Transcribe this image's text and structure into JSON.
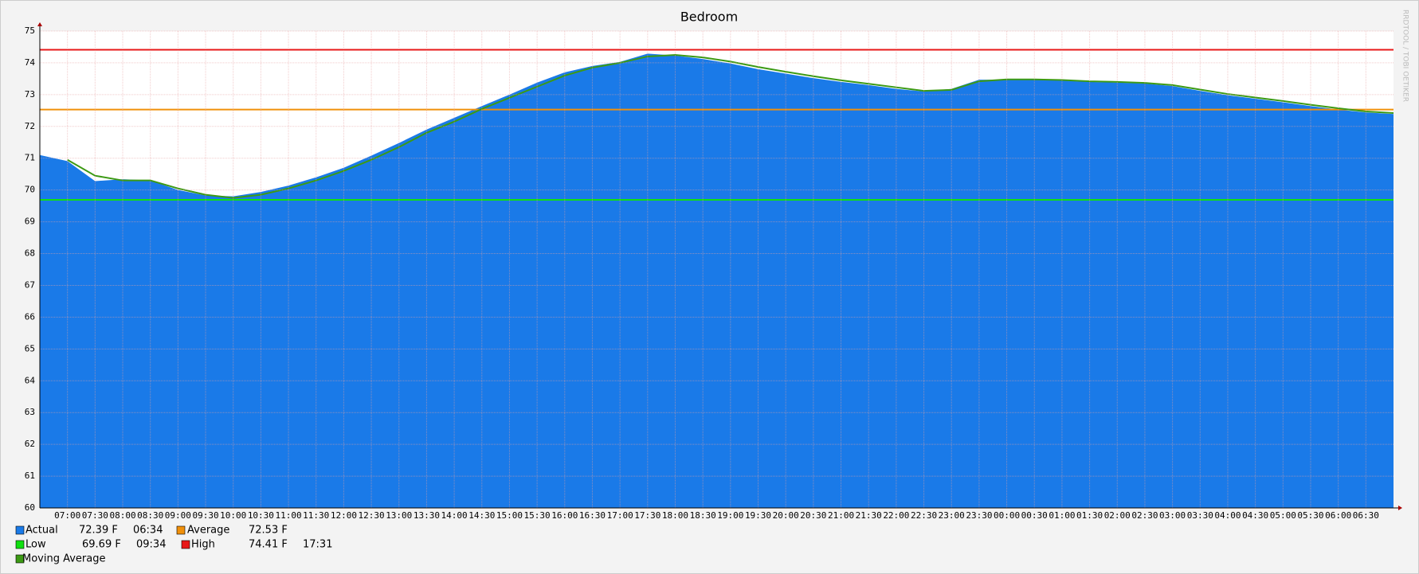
{
  "chart_data": {
    "type": "area",
    "title": "Bedroom",
    "watermark": "RRDTOOL / TOBI OETIKER",
    "categories": [
      null,
      "07:00",
      "07:30",
      "08:00",
      "08:30",
      "09:00",
      "09:30",
      "10:00",
      "10:30",
      "11:00",
      "11:30",
      "12:00",
      "12:30",
      "13:00",
      "13:30",
      "14:00",
      "14:30",
      "15:00",
      "15:30",
      "16:00",
      "16:30",
      "17:00",
      "17:30",
      "18:00",
      "18:30",
      "19:00",
      "19:30",
      "20:00",
      "20:30",
      "21:00",
      "21:30",
      "22:00",
      "22:30",
      "23:00",
      "23:30",
      "00:00",
      "00:30",
      "01:00",
      "01:30",
      "02:00",
      "02:30",
      "03:00",
      "03:30",
      "04:00",
      "04:30",
      "05:00",
      "05:30",
      "06:00",
      "06:30",
      null
    ],
    "ylim": [
      60,
      75
    ],
    "yticks": [
      60,
      61,
      62,
      63,
      64,
      65,
      66,
      67,
      68,
      69,
      70,
      71,
      72,
      73,
      74,
      75
    ],
    "grid": true,
    "series": [
      {
        "name": "Actual",
        "kind": "area",
        "color": "#1a7ae8",
        "last_label": "72.39 F",
        "time": "06:34",
        "values": [
          71.1,
          70.91,
          70.28,
          70.34,
          70.3,
          70.0,
          69.83,
          69.8,
          69.94,
          70.14,
          70.4,
          70.7,
          71.08,
          71.48,
          71.9,
          72.27,
          72.64,
          73.0,
          73.38,
          73.7,
          73.9,
          74.03,
          74.29,
          74.23,
          74.12,
          73.98,
          73.8,
          73.66,
          73.52,
          73.4,
          73.3,
          73.18,
          73.1,
          73.18,
          73.47,
          73.47,
          73.47,
          73.44,
          73.4,
          73.38,
          73.35,
          73.27,
          73.12,
          72.98,
          72.87,
          72.76,
          72.64,
          72.53,
          72.44,
          72.39
        ]
      },
      {
        "name": "Average",
        "kind": "hline",
        "color": "#f0900a",
        "value": 72.53,
        "value_label": "72.53 F"
      },
      {
        "name": "Low",
        "kind": "hline",
        "color": "#10e010",
        "value": 69.69,
        "value_label": "69.69 F",
        "time": "09:34"
      },
      {
        "name": "High",
        "kind": "hline",
        "color": "#e81818",
        "value": 74.41,
        "value_label": "74.41 F",
        "time": "17:31"
      },
      {
        "name": "Moving Average",
        "kind": "line",
        "color": "#3c9a14",
        "values": [
          null,
          70.95,
          70.45,
          70.3,
          70.3,
          70.05,
          69.85,
          69.75,
          69.85,
          70.05,
          70.3,
          70.6,
          70.95,
          71.35,
          71.8,
          72.15,
          72.55,
          72.9,
          73.25,
          73.6,
          73.85,
          74.0,
          74.2,
          74.25,
          74.17,
          74.04,
          73.87,
          73.72,
          73.58,
          73.45,
          73.34,
          73.23,
          73.12,
          73.15,
          73.42,
          73.48,
          73.48,
          73.46,
          73.42,
          73.4,
          73.37,
          73.3,
          73.16,
          73.02,
          72.91,
          72.8,
          72.68,
          72.57,
          72.47,
          72.42
        ]
      }
    ]
  }
}
